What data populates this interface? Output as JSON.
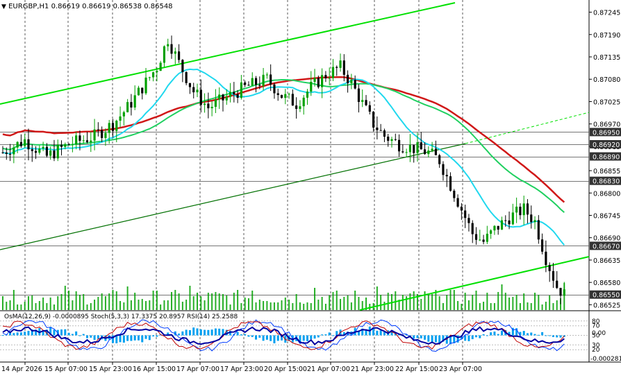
{
  "header": {
    "arrow_icon": "triangle-down-icon",
    "symbol_timeframe": "EURGBP,H1",
    "ohlc": "0.86619 0.86619 0.86538 0.86548"
  },
  "price_axis": {
    "ticks": [
      "0.87245",
      "0.87190",
      "0.87135",
      "0.87080",
      "0.87025",
      "0.86970",
      "0.86915",
      "0.86855",
      "0.86800",
      "0.86745",
      "0.86690",
      "0.86635",
      "0.86580",
      "0.86525"
    ],
    "marked_levels": [
      {
        "label": "0.86950",
        "value": 0.8695,
        "color": "#333333"
      },
      {
        "label": "0.86920",
        "value": 0.8692,
        "color": "#333333"
      },
      {
        "label": "0.86890",
        "value": 0.8689,
        "color": "#333333"
      },
      {
        "label": "0.86830",
        "value": 0.8683,
        "color": "#333333"
      },
      {
        "label": "0.86670",
        "value": 0.8667,
        "color": "#333333"
      },
      {
        "label": "0.86550",
        "value": 0.8655,
        "color": "#333333"
      }
    ],
    "range": [
      0.86512,
      0.87275
    ]
  },
  "time_axis": {
    "labels": [
      "14 Apr 2026",
      "15 Apr 07:00",
      "15 Apr 23:00",
      "16 Apr 15:00",
      "17 Apr 07:00",
      "17 Apr 23:00",
      "20 Apr 15:00",
      "21 Apr 07:00",
      "21 Apr 23:00",
      "22 Apr 15:00",
      "23 Apr 07:00"
    ]
  },
  "indicator": {
    "header": "OsMA(12,26,9) -0.0000895  Stoch(5,3,3) 17.3375 20.8957  RSI(14) 25.2588",
    "scale_labels": [
      "80",
      "70",
      "0.00",
      "50",
      "30",
      "20"
    ],
    "bottom_value": "-0.000281",
    "osma_color": "#00a0f0",
    "stoch_main_color": "#003cff",
    "stoch_signal_color": "#c00000",
    "rsi_color": "#0000a0"
  },
  "colors": {
    "bull_candle": "#00a000",
    "bear_candle": "#000000",
    "trend_green": "#00e000",
    "ma_red": "#d01818",
    "ma_green": "#20d060",
    "ma_cyan": "#20d8ee",
    "volume": "#00a000",
    "grid": "#000000"
  }
}
